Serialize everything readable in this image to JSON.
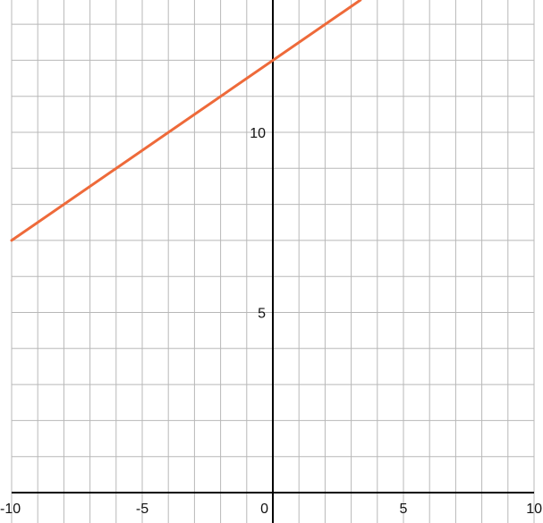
{
  "chart_data": {
    "type": "line",
    "title": "",
    "xlabel": "",
    "ylabel": "",
    "xlim": [
      -10,
      10
    ],
    "ylim": [
      -0.84,
      13.67
    ],
    "grid": true,
    "x_ticks": [
      -10,
      -5,
      0,
      5,
      10
    ],
    "y_ticks": [
      5,
      10
    ],
    "x_tick_labels": [
      "-10",
      "-5",
      "0",
      "5",
      "10"
    ],
    "y_tick_labels": [
      "5",
      "10"
    ],
    "series": [
      {
        "equation": "y = 0.5x + 12",
        "slope": 0.5,
        "intercept": 12,
        "x": [
          -10,
          3.35
        ],
        "y": [
          7,
          13.67
        ],
        "color": "#ee6a3a"
      }
    ],
    "colors": {
      "grid": "#b8b8b8",
      "axis": "#000000"
    }
  }
}
